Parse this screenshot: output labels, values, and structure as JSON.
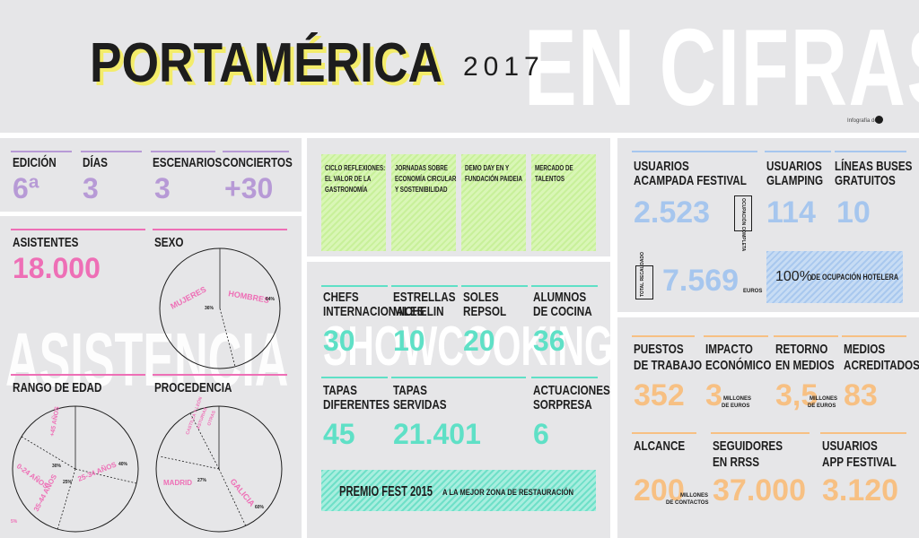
{
  "header": {
    "title_a": "PORTAMÉRICA",
    "year": "2017",
    "title_b": "EN CIFRAS",
    "credit": "Infografía de"
  },
  "festival": {
    "items": [
      {
        "label": "EDICIÓN",
        "value": "6ª"
      },
      {
        "label": "DÍAS",
        "value": "3"
      },
      {
        "label": "ESCENARIOS",
        "value": "3"
      },
      {
        "label": "CONCIERTOS",
        "value": "+30"
      }
    ]
  },
  "asistencia": {
    "watermark": "ASISTENCIA",
    "asistentes_label": "ASISTENTES",
    "asistentes_value": "18.000",
    "sexo_label": "SEXO",
    "sexo_mujeres": "MUJERES",
    "sexo_mujeres_pct": "36%",
    "sexo_hombres": "HOMBRES",
    "sexo_hombres_pct": "64%",
    "edad_label": "RANGO DE EDAD",
    "edad_0_24": "0-24 AÑOS",
    "edad_0_24_pct": "30%",
    "edad_25_34": "25-34 AÑOS",
    "edad_25_34_pct": "40%",
    "edad_35_44": "35-44 AÑOS",
    "edad_35_44_pct": "25%",
    "edad_45": "+45 AÑOS",
    "edad_45_pct": "5%",
    "procedencia_label": "PROCEDENCIA",
    "proc_madrid": "MADRID",
    "proc_madrid_pct": "27%",
    "proc_galicia": "GALICIA",
    "proc_galicia_pct": "60%",
    "proc_other1": "CASTILLA Y LEÓN",
    "proc_other2": "ASTURIAS",
    "proc_other3": "OTRAS"
  },
  "showcooking": {
    "watermark": "SHOWCOOKING",
    "activities": [
      "CICLO REFLEXIONES: EL VALOR DE LA GASTRONOMÍA",
      "JORNADAS SOBRE ECONOMÍA CIRCULAR Y SOSTENIBILIDAD",
      "DEMO DAY EN Y FUNDACIÓN PAIDEIA",
      "MERCADO DE TALENTOS"
    ],
    "row1": [
      {
        "label1": "CHEFS",
        "label2": "INTERNACIONALES",
        "value": "30"
      },
      {
        "label1": "ESTRELLAS",
        "label2": "MICHELIN",
        "value": "10"
      },
      {
        "label1": "SOLES",
        "label2": "REPSOL",
        "value": "20"
      },
      {
        "label1": "ALUMNOS",
        "label2": "DE COCINA",
        "value": "36"
      }
    ],
    "row2": [
      {
        "label1": "TAPAS",
        "label2": "DIFERENTES",
        "value": "45"
      },
      {
        "label1": "TAPAS",
        "label2": "SERVIDAS",
        "value": "21.401"
      },
      {
        "label1": "ACTUACIONES",
        "label2": "SORPRESA",
        "value": "6"
      }
    ],
    "premio_a": "PREMIO FEST 2015",
    "premio_b": "A LA MEJOR ZONA DE RESTAURACIÓN"
  },
  "alojamiento": {
    "acampada_label1": "USUARIOS",
    "acampada_label2": "ACAMPADA FESTIVAL",
    "acampada_value": "2.523",
    "acampada_side": "OCUPACIÓN COMPLETA",
    "glamping_label1": "USUARIOS",
    "glamping_label2": "GLAMPING",
    "glamping_value": "114",
    "buses_label1": "LÍNEAS BUSES",
    "buses_label2": "GRATUITOS",
    "buses_value": "10",
    "total_side": "TOTAL RECAUDADO",
    "total_value": "7.569",
    "total_unit": "EUROS",
    "hotel_pct": "100%",
    "hotel_text": "DE OCUPACIÓN HOTELERA"
  },
  "impacto": {
    "row1": [
      {
        "label1": "PUESTOS",
        "label2": "DE TRABAJO",
        "value": "352",
        "unit1": "",
        "unit2": ""
      },
      {
        "label1": "IMPACTO",
        "label2": "ECONÓMICO",
        "value": "3",
        "unit1": "MILLONES",
        "unit2": "DE EUROS"
      },
      {
        "label1": "RETORNO",
        "label2": "EN MEDIOS",
        "value": "3,5",
        "unit1": "MILLONES",
        "unit2": "DE EUROS"
      },
      {
        "label1": "MEDIOS",
        "label2": "ACREDITADOS",
        "value": "83",
        "unit1": "",
        "unit2": ""
      }
    ],
    "row2": [
      {
        "label1": "ALCANCE",
        "label2": "",
        "value": "200",
        "unit1": "MILLONES",
        "unit2": "DE CONTACTOS"
      },
      {
        "label1": "SEGUIDORES",
        "label2": "EN RRSS",
        "value": "37.000",
        "unit1": "",
        "unit2": ""
      },
      {
        "label1": "USUARIOS",
        "label2": "APP FESTIVAL",
        "value": "3.120",
        "unit1": "",
        "unit2": ""
      }
    ]
  },
  "colors": {
    "purple": "#b79ad6",
    "pink": "#ee6fb6",
    "teal": "#5fe0c6",
    "blue": "#a6c6ee",
    "orange": "#f7c083",
    "green": "#c8f09a"
  }
}
